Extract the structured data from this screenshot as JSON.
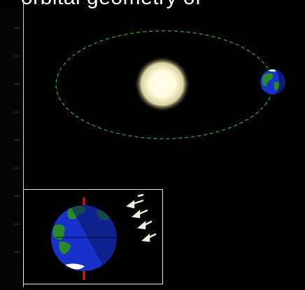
{
  "header": {
    "title_fragment": "orbital geometry of"
  },
  "scene": {
    "orbit_color": "#22bb22",
    "sun_color": "#fffbe0",
    "sun_glow_color": "#f5f0c0",
    "earth_ocean_color": "#1632c8",
    "earth_land_color": "#2a8a2a",
    "earth_shadow_color": "#0a1460",
    "axis_color": "#e01818",
    "sunlight_arrow_color": "#f2f0d8"
  }
}
